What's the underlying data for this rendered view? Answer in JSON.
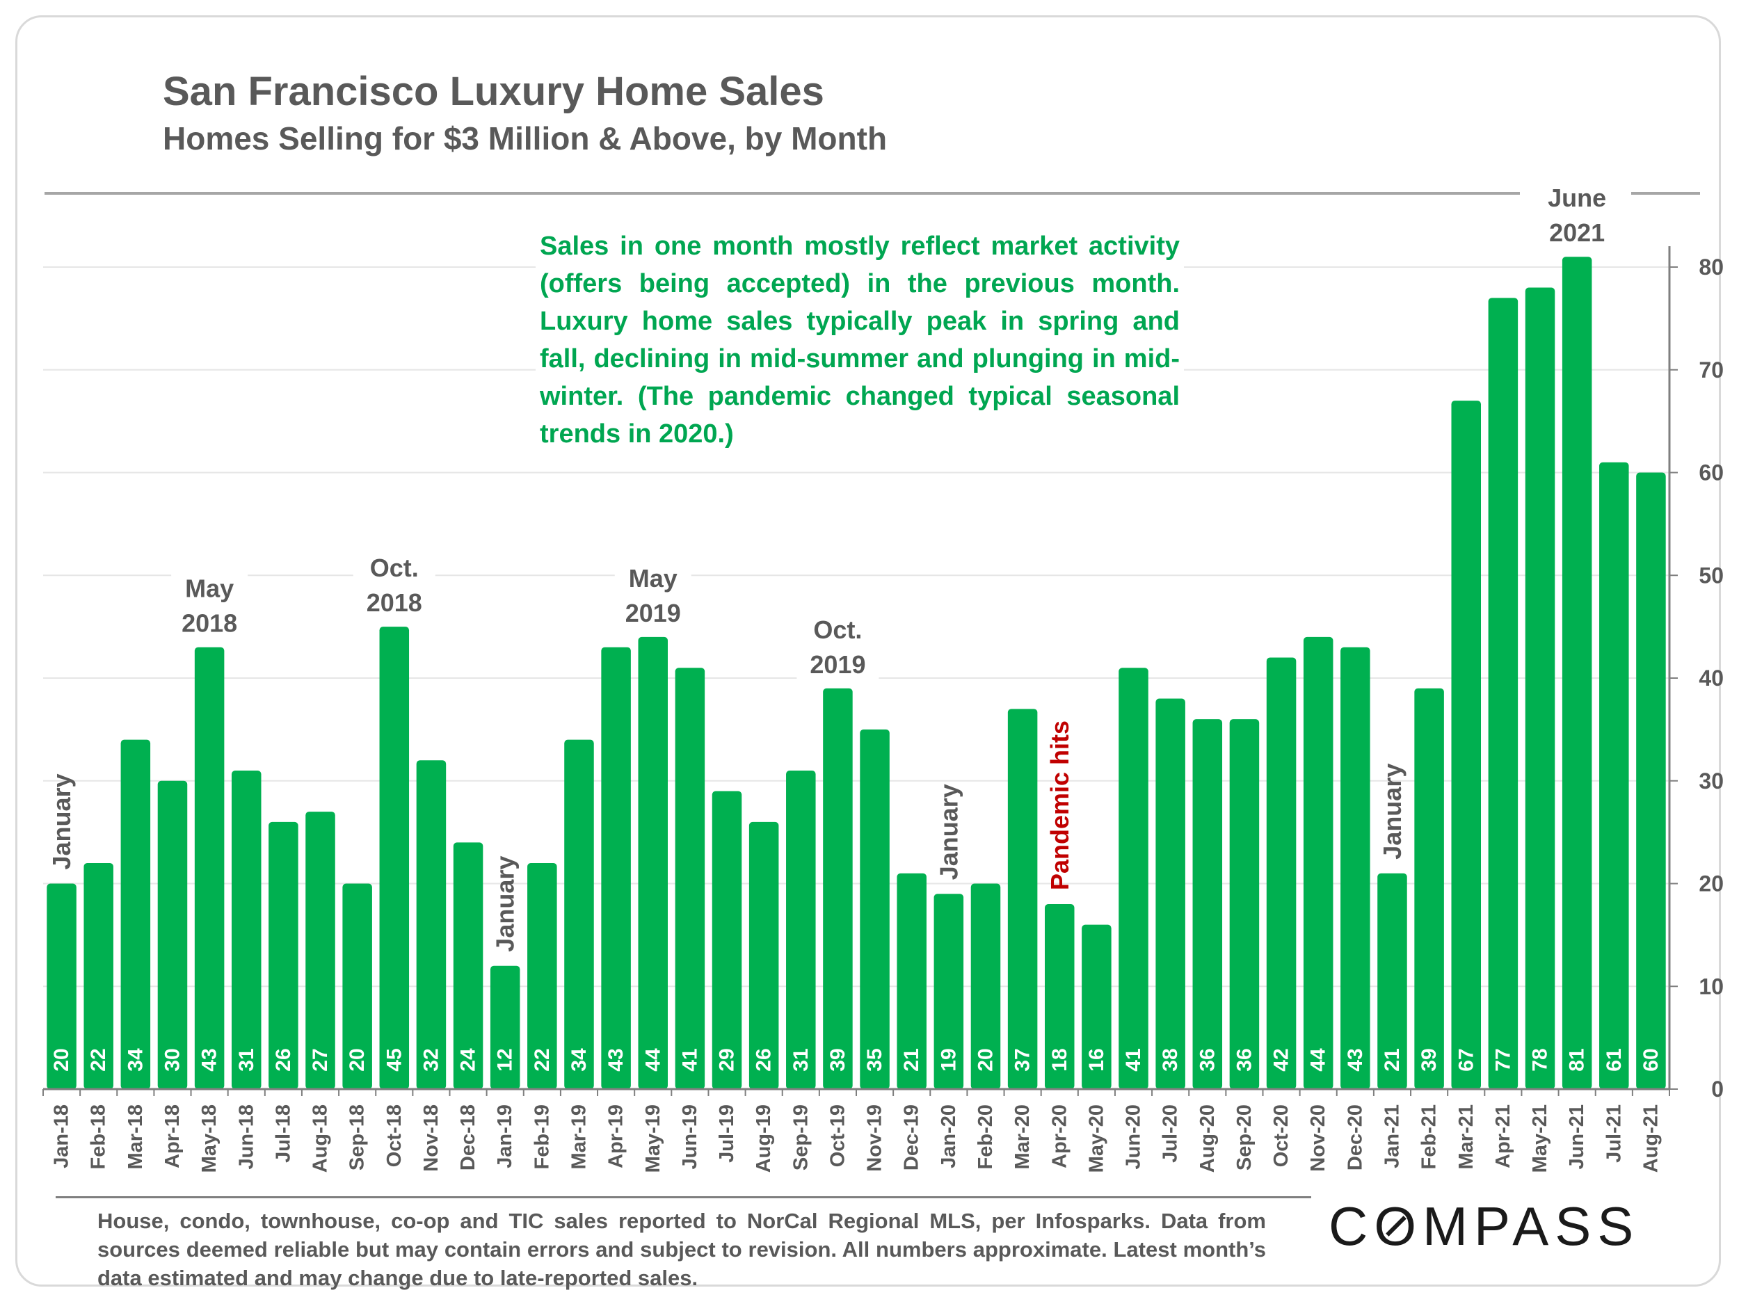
{
  "header": {
    "title": "San Francisco Luxury Home Sales",
    "subtitle": "Homes Selling for $3 Million & Above, by Month"
  },
  "annotation_text": "Sales in one month mostly reflect market activity (offers being accepted) in the previous month. Luxury home sales typically peak in spring and fall, declining in mid-summer and plunging in mid-winter. (The pandemic changed typical seasonal trends in 2020.)",
  "footnote": "House, condo, townhouse, co-op and TIC sales reported to NorCal Regional MLS, per Infosparks. Data from sources deemed reliable but may contain errors and subject to revision. All numbers approximate. Latest month’s data estimated and may change due to late-reported sales.",
  "logo": "COMPASS",
  "colors": {
    "bar": "#00b050",
    "text": "#595959",
    "annotation": "#00a651",
    "pandemic": "#c00000",
    "grid": "#e6e6e6"
  },
  "chart_data": {
    "type": "bar",
    "title": "San Francisco Luxury Home Sales",
    "subtitle": "Homes Selling for $3 Million & Above, by Month",
    "xlabel": "",
    "ylabel": "",
    "ylim": [
      0,
      80
    ],
    "yticks": [
      0,
      10,
      20,
      30,
      40,
      50,
      60,
      70,
      80
    ],
    "y_axis_side": "right",
    "grid": true,
    "categories": [
      "Jan-18",
      "Feb-18",
      "Mar-18",
      "Apr-18",
      "May-18",
      "Jun-18",
      "Jul-18",
      "Aug-18",
      "Sep-18",
      "Oct-18",
      "Nov-18",
      "Dec-18",
      "Jan-19",
      "Feb-19",
      "Mar-19",
      "Apr-19",
      "May-19",
      "Jun-19",
      "Jul-19",
      "Aug-19",
      "Sep-19",
      "Oct-19",
      "Nov-19",
      "Dec-19",
      "Jan-20",
      "Feb-20",
      "Mar-20",
      "Apr-20",
      "May-20",
      "Jun-20",
      "Jul-20",
      "Aug-20",
      "Sep-20",
      "Oct-20",
      "Nov-20",
      "Dec-20",
      "Jan-21",
      "Feb-21",
      "Mar-21",
      "Apr-21",
      "May-21",
      "Jun-21",
      "Jul-21",
      "Aug-21"
    ],
    "values": [
      20,
      22,
      34,
      30,
      43,
      31,
      26,
      27,
      20,
      45,
      32,
      24,
      12,
      22,
      34,
      43,
      44,
      41,
      29,
      26,
      31,
      39,
      35,
      21,
      19,
      20,
      37,
      18,
      16,
      41,
      38,
      36,
      36,
      42,
      44,
      43,
      21,
      39,
      67,
      77,
      78,
      81,
      61,
      60
    ],
    "annotations": [
      {
        "index": 0,
        "text": "January",
        "style": "vertical"
      },
      {
        "index": 4,
        "text": "May 2018",
        "lines": [
          "May",
          "2018"
        ]
      },
      {
        "index": 9,
        "text": "Oct. 2018",
        "lines": [
          "Oct.",
          "2018"
        ]
      },
      {
        "index": 12,
        "text": "January",
        "style": "vertical"
      },
      {
        "index": 16,
        "text": "May 2019",
        "lines": [
          "May",
          "2019"
        ]
      },
      {
        "index": 21,
        "text": "Oct. 2019",
        "lines": [
          "Oct.",
          "2019"
        ]
      },
      {
        "index": 24,
        "text": "January",
        "style": "vertical"
      },
      {
        "index": 27,
        "text": "Pandemic hits",
        "style": "vertical",
        "color": "pandemic"
      },
      {
        "index": 36,
        "text": "January",
        "style": "vertical"
      },
      {
        "index": 41,
        "text": "June 2021",
        "lines": [
          "June",
          "2021"
        ]
      }
    ]
  }
}
